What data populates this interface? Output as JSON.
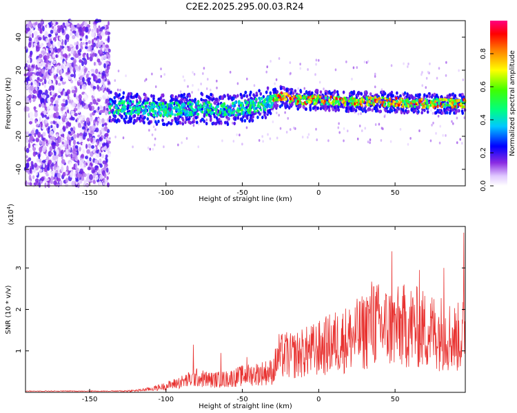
{
  "title": "C2E2.2025.295.00.03.R24",
  "colors": {
    "snr_line": "#e8312f",
    "density_low": "#7b2cff",
    "density_high": "#ff1a1a"
  },
  "chart_data": [
    {
      "type": "heatmap",
      "xlabel": "Height of straight line (km)",
      "ylabel": "Frequency (Hz)",
      "xlim": [
        -192,
        96
      ],
      "ylim": [
        -50,
        50
      ],
      "xticks": [
        -150,
        -100,
        -50,
        0,
        50
      ],
      "yticks": [
        -40,
        -20,
        0,
        20,
        40
      ],
      "colorbar": {
        "label": "Normalized spectral amplitude",
        "range": [
          0,
          1
        ],
        "ticks": [
          "0.0",
          "0.2",
          "0.4",
          "0.6",
          "0.8"
        ],
        "colormap": "rainbow (white-violet-blue-cyan-green-yellow-red)"
      },
      "ridge": {
        "x": [
          -137,
          -120,
          -100,
          -80,
          -60,
          -45,
          -35,
          -25,
          -15,
          0,
          20,
          40,
          60,
          80,
          96
        ],
        "frequency": [
          -2,
          -3,
          -4,
          -3,
          -4,
          -2,
          0,
          4,
          2,
          2,
          1,
          1,
          0,
          0,
          0
        ]
      }
    },
    {
      "type": "line",
      "xlabel": "Height of straight line (km)",
      "ylabel": "SNR (10 * v/v)",
      "yscale_label": "(x10^4)",
      "yscale_base": "(x10",
      "yscale_exp": "4",
      "yscale_tail": ")",
      "xlim": [
        -192,
        96
      ],
      "ylim": [
        0,
        4
      ],
      "xticks": [
        -150,
        -100,
        -50,
        0,
        50
      ],
      "yticks": [
        1,
        2,
        3
      ],
      "series": [
        {
          "x": [
            -192,
            -150,
            -130,
            -120,
            -110,
            -100,
            -90,
            -80,
            -70,
            -60,
            -50,
            -40,
            -30,
            -26,
            -20,
            -10,
            0,
            10,
            20,
            30,
            35,
            40,
            50,
            60,
            70,
            80,
            90,
            96
          ],
          "y": [
            0.02,
            0.02,
            0.03,
            0.04,
            0.08,
            0.15,
            0.25,
            0.35,
            0.3,
            0.32,
            0.4,
            0.45,
            0.5,
            0.9,
            0.85,
            0.95,
            1.05,
            1.2,
            1.3,
            1.45,
            1.7,
            1.6,
            1.55,
            1.6,
            1.5,
            1.45,
            1.3,
            1.4
          ]
        }
      ],
      "peaks": {
        "x": [
          -82,
          -64,
          -47,
          -25,
          -21,
          32,
          36,
          48,
          56,
          66,
          82,
          95
        ],
        "y": [
          1.15,
          0.95,
          0.85,
          1.2,
          1.45,
          2.2,
          2.55,
          3.4,
          2.6,
          2.95,
          3.0,
          3.85
        ]
      }
    }
  ]
}
